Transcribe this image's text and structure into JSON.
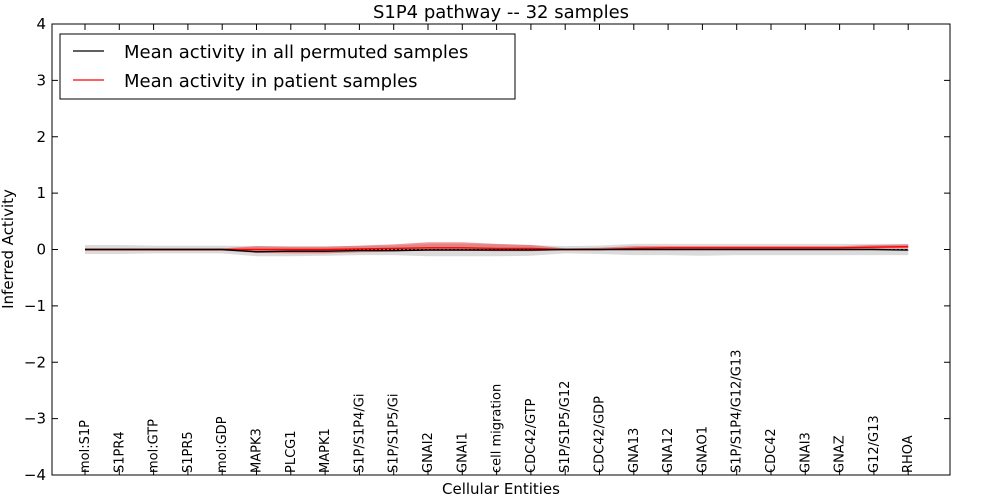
{
  "chart_data": {
    "type": "line",
    "title": "S1P4 pathway -- 32 samples",
    "xlabel": "Cellular Entities",
    "ylabel": "Inferred Activity",
    "ylim": [
      -4,
      4
    ],
    "yticks": [
      4,
      3,
      2,
      1,
      0,
      -1,
      -2,
      -3,
      -4
    ],
    "ytick_labels": [
      "4",
      "3",
      "2",
      "1",
      "0",
      "−1",
      "−2",
      "−3",
      "−4"
    ],
    "legend_position": "top-left",
    "categories": [
      "mol:S1P",
      "S1PR4",
      "mol:GTP",
      "S1PR5",
      "mol:GDP",
      "MAPK3",
      "PLCG1",
      "MAPK1",
      "S1P/S1P4/Gi",
      "S1P/S1P5/Gi",
      "GNAI2",
      "GNAI1",
      "cell migration",
      "CDC42/GTP",
      "S1P/S1P5/G12",
      "CDC42/GDP",
      "GNA13",
      "GNA12",
      "GNAO1",
      "S1P/S1P4/G12/G13",
      "CDC42",
      "GNAI3",
      "GNAZ",
      "G12/G13",
      "RHOA"
    ],
    "series": [
      {
        "name": "Mean activity in all permuted samples",
        "color": "#000000",
        "values": [
          0,
          0,
          0,
          0,
          0,
          -0.04,
          -0.03,
          -0.03,
          -0.02,
          -0.02,
          -0.01,
          -0.01,
          -0.01,
          -0.01,
          0,
          0,
          0,
          0,
          0,
          0,
          0,
          0,
          0,
          0,
          -0.01
        ],
        "band_lower": [
          -0.08,
          -0.08,
          -0.07,
          -0.07,
          -0.07,
          -0.12,
          -0.12,
          -0.11,
          -0.1,
          -0.1,
          -0.12,
          -0.12,
          -0.12,
          -0.11,
          -0.07,
          -0.08,
          -0.1,
          -0.1,
          -0.11,
          -0.1,
          -0.1,
          -0.1,
          -0.1,
          -0.1,
          -0.1
        ],
        "band_upper": [
          0.08,
          0.08,
          0.07,
          0.07,
          0.07,
          0.06,
          0.06,
          0.06,
          0.06,
          0.07,
          0.1,
          0.1,
          0.09,
          0.08,
          0.06,
          0.07,
          0.1,
          0.1,
          0.1,
          0.1,
          0.1,
          0.1,
          0.1,
          0.1,
          0.1
        ]
      },
      {
        "name": "Mean activity in patient samples",
        "color": "#ff0000",
        "values": [
          0,
          0,
          0,
          0,
          0,
          0,
          0,
          0,
          0.01,
          0.02,
          0.03,
          0.03,
          0.02,
          0.02,
          0,
          0,
          0.02,
          0.03,
          0.03,
          0.03,
          0.03,
          0.03,
          0.03,
          0.04,
          0.05
        ],
        "band_lower": [
          -0.02,
          -0.02,
          -0.02,
          -0.02,
          -0.02,
          -0.06,
          -0.07,
          -0.07,
          -0.05,
          -0.04,
          -0.02,
          -0.02,
          -0.03,
          -0.03,
          -0.01,
          0,
          0,
          0.01,
          0.01,
          0.01,
          0.01,
          0.01,
          0.01,
          0.01,
          0.02
        ],
        "band_upper": [
          0.02,
          0.02,
          0.02,
          0.02,
          0.02,
          0.06,
          0.05,
          0.05,
          0.07,
          0.09,
          0.13,
          0.13,
          0.1,
          0.08,
          0.02,
          0.03,
          0.06,
          0.06,
          0.06,
          0.06,
          0.06,
          0.06,
          0.06,
          0.08,
          0.09
        ]
      }
    ]
  }
}
